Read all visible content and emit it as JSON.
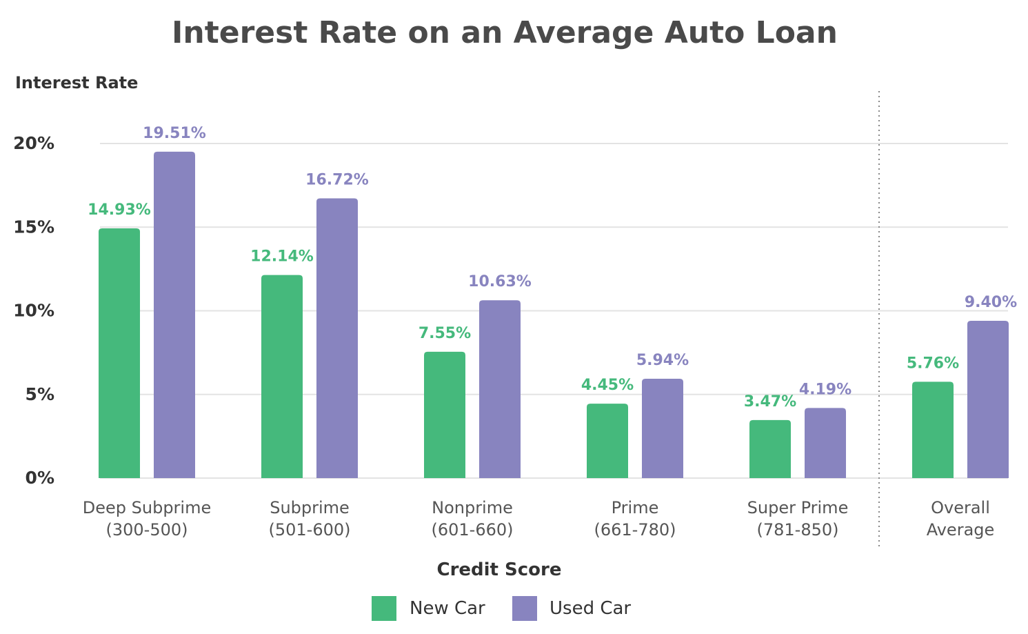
{
  "chart_data": {
    "type": "bar",
    "title": "Interest Rate on an Average Auto Loan",
    "ylabel": "Interest Rate",
    "xlabel": "Credit Score",
    "ylim": [
      0,
      20
    ],
    "yticks": [
      "0%",
      "5%",
      "10%",
      "15%",
      "20%"
    ],
    "ytick_values": [
      0,
      5,
      10,
      15,
      20
    ],
    "grid": true,
    "legend_position": "bottom",
    "categories": [
      [
        "Deep Subprime",
        "(300-500)"
      ],
      [
        "Subprime",
        "(501-600)"
      ],
      [
        "Nonprime",
        "(601-660)"
      ],
      [
        "Prime",
        "(661-780)"
      ],
      [
        "Super Prime",
        "(781-850)"
      ],
      [
        "Overall",
        "Average"
      ]
    ],
    "separator_before_category_index": 5,
    "series": [
      {
        "name": "New Car",
        "color": "#45b97c",
        "values": [
          14.93,
          12.14,
          7.55,
          4.45,
          3.47,
          5.76
        ],
        "labels": [
          "14.93%",
          "12.14%",
          "7.55%",
          "4.45%",
          "3.47%",
          "5.76%"
        ]
      },
      {
        "name": "Used Car",
        "color": "#8884bf",
        "values": [
          19.51,
          16.72,
          10.63,
          5.94,
          4.19,
          9.4
        ],
        "labels": [
          "19.51%",
          "16.72%",
          "10.63%",
          "5.94%",
          "4.19%",
          "9.40%"
        ]
      }
    ]
  }
}
